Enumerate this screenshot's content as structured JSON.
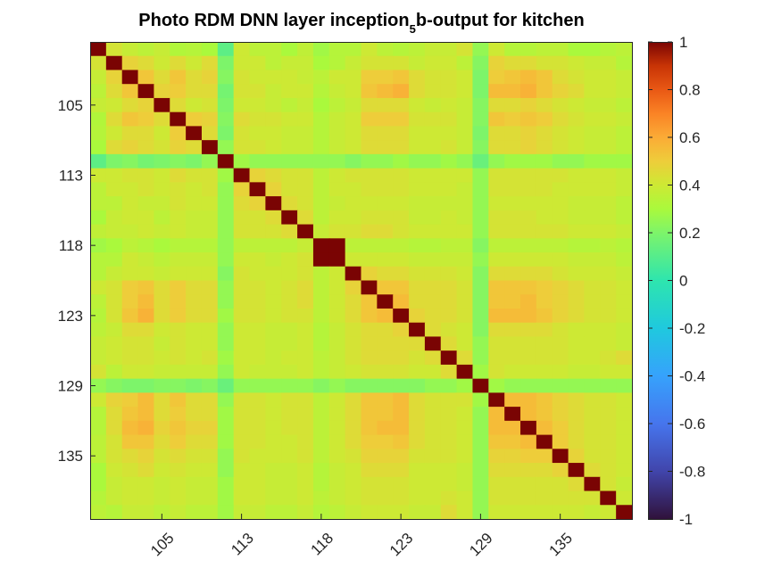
{
  "chart_data": {
    "type": "heatmap",
    "title": {
      "prefix": "Photo RDM DNN layer inception",
      "subscript": "5",
      "suffix": "b-output for kitchen"
    },
    "y_ticks": [
      {
        "label": "105",
        "index": 4
      },
      {
        "label": "113",
        "index": 9
      },
      {
        "label": "118",
        "index": 14
      },
      {
        "label": "123",
        "index": 19
      },
      {
        "label": "129",
        "index": 24
      },
      {
        "label": "135",
        "index": 29
      }
    ],
    "x_ticks": [
      {
        "label": "105",
        "index": 4
      },
      {
        "label": "113",
        "index": 9
      },
      {
        "label": "118",
        "index": 14
      },
      {
        "label": "123",
        "index": 19
      },
      {
        "label": "129",
        "index": 24
      },
      {
        "label": "135",
        "index": 29
      }
    ],
    "colorbar": {
      "min": -1,
      "max": 1,
      "ticks": [
        "-1",
        "-0.8",
        "-0.6",
        "-0.4",
        "-0.2",
        "0",
        "0.2",
        "0.4",
        "0.6",
        "0.8",
        "1"
      ],
      "colormap": "turbo"
    },
    "matrix": [
      [
        1.0,
        0.42,
        0.38,
        0.35,
        0.38,
        0.32,
        0.33,
        0.3,
        0.12,
        0.4,
        0.35,
        0.35,
        0.3,
        0.36,
        0.28,
        0.33,
        0.33,
        0.4,
        0.35,
        0.33,
        0.35,
        0.38,
        0.38,
        0.42,
        0.25,
        0.4,
        0.33,
        0.33,
        0.35,
        0.35,
        0.3,
        0.3,
        0.33,
        0.35
      ],
      [
        0.42,
        1.0,
        0.48,
        0.45,
        0.4,
        0.45,
        0.4,
        0.45,
        0.2,
        0.4,
        0.4,
        0.35,
        0.38,
        0.38,
        0.3,
        0.33,
        0.38,
        0.42,
        0.42,
        0.42,
        0.38,
        0.4,
        0.4,
        0.35,
        0.22,
        0.48,
        0.45,
        0.45,
        0.42,
        0.42,
        0.4,
        0.38,
        0.38,
        0.33
      ],
      [
        0.38,
        0.48,
        1.0,
        0.52,
        0.45,
        0.52,
        0.45,
        0.48,
        0.22,
        0.42,
        0.4,
        0.4,
        0.4,
        0.38,
        0.35,
        0.4,
        0.4,
        0.5,
        0.5,
        0.52,
        0.45,
        0.42,
        0.42,
        0.4,
        0.2,
        0.5,
        0.52,
        0.55,
        0.52,
        0.45,
        0.42,
        0.4,
        0.4,
        0.38
      ],
      [
        0.35,
        0.45,
        0.52,
        1.0,
        0.48,
        0.5,
        0.45,
        0.45,
        0.18,
        0.42,
        0.42,
        0.38,
        0.4,
        0.4,
        0.33,
        0.38,
        0.4,
        0.52,
        0.55,
        0.58,
        0.45,
        0.42,
        0.42,
        0.4,
        0.2,
        0.55,
        0.55,
        0.58,
        0.52,
        0.48,
        0.45,
        0.4,
        0.4,
        0.38
      ],
      [
        0.38,
        0.4,
        0.45,
        0.48,
        1.0,
        0.45,
        0.4,
        0.42,
        0.2,
        0.4,
        0.4,
        0.38,
        0.35,
        0.38,
        0.3,
        0.35,
        0.38,
        0.45,
        0.45,
        0.45,
        0.4,
        0.38,
        0.4,
        0.38,
        0.22,
        0.45,
        0.45,
        0.48,
        0.45,
        0.42,
        0.4,
        0.38,
        0.38,
        0.35
      ],
      [
        0.32,
        0.45,
        0.52,
        0.5,
        0.45,
        1.0,
        0.5,
        0.48,
        0.22,
        0.45,
        0.42,
        0.42,
        0.4,
        0.4,
        0.33,
        0.38,
        0.4,
        0.5,
        0.5,
        0.5,
        0.42,
        0.42,
        0.42,
        0.38,
        0.22,
        0.52,
        0.5,
        0.52,
        0.5,
        0.45,
        0.42,
        0.4,
        0.4,
        0.38
      ],
      [
        0.33,
        0.4,
        0.45,
        0.45,
        0.4,
        0.5,
        1.0,
        0.45,
        0.2,
        0.42,
        0.4,
        0.4,
        0.38,
        0.38,
        0.33,
        0.38,
        0.4,
        0.45,
        0.45,
        0.45,
        0.4,
        0.4,
        0.4,
        0.38,
        0.2,
        0.45,
        0.45,
        0.48,
        0.45,
        0.42,
        0.4,
        0.38,
        0.38,
        0.35
      ],
      [
        0.3,
        0.45,
        0.48,
        0.45,
        0.42,
        0.48,
        0.45,
        1.0,
        0.25,
        0.42,
        0.42,
        0.4,
        0.38,
        0.38,
        0.33,
        0.38,
        0.4,
        0.45,
        0.45,
        0.45,
        0.4,
        0.4,
        0.42,
        0.38,
        0.22,
        0.45,
        0.45,
        0.48,
        0.45,
        0.42,
        0.4,
        0.38,
        0.38,
        0.35
      ],
      [
        0.12,
        0.2,
        0.22,
        0.18,
        0.2,
        0.22,
        0.2,
        0.25,
        1.0,
        0.28,
        0.25,
        0.25,
        0.25,
        0.25,
        0.25,
        0.25,
        0.22,
        0.25,
        0.25,
        0.28,
        0.25,
        0.25,
        0.28,
        0.25,
        0.15,
        0.25,
        0.28,
        0.28,
        0.28,
        0.25,
        0.25,
        0.28,
        0.28,
        0.28
      ],
      [
        0.4,
        0.4,
        0.42,
        0.42,
        0.4,
        0.45,
        0.42,
        0.42,
        0.28,
        1.0,
        0.48,
        0.45,
        0.42,
        0.42,
        0.35,
        0.4,
        0.42,
        0.42,
        0.42,
        0.42,
        0.4,
        0.4,
        0.4,
        0.4,
        0.25,
        0.42,
        0.42,
        0.42,
        0.42,
        0.42,
        0.4,
        0.4,
        0.4,
        0.38
      ],
      [
        0.35,
        0.4,
        0.4,
        0.42,
        0.4,
        0.42,
        0.4,
        0.42,
        0.25,
        0.48,
        1.0,
        0.48,
        0.42,
        0.42,
        0.35,
        0.4,
        0.4,
        0.42,
        0.42,
        0.42,
        0.4,
        0.4,
        0.4,
        0.38,
        0.25,
        0.42,
        0.42,
        0.42,
        0.42,
        0.4,
        0.4,
        0.4,
        0.4,
        0.38
      ],
      [
        0.35,
        0.35,
        0.4,
        0.38,
        0.38,
        0.42,
        0.4,
        0.4,
        0.25,
        0.45,
        0.48,
        1.0,
        0.45,
        0.42,
        0.35,
        0.38,
        0.4,
        0.4,
        0.4,
        0.4,
        0.38,
        0.38,
        0.38,
        0.38,
        0.25,
        0.4,
        0.4,
        0.4,
        0.4,
        0.4,
        0.38,
        0.38,
        0.38,
        0.35
      ],
      [
        0.3,
        0.38,
        0.4,
        0.4,
        0.35,
        0.4,
        0.38,
        0.38,
        0.25,
        0.42,
        0.42,
        0.45,
        1.0,
        0.45,
        0.35,
        0.4,
        0.4,
        0.42,
        0.42,
        0.42,
        0.38,
        0.38,
        0.4,
        0.38,
        0.25,
        0.42,
        0.42,
        0.42,
        0.4,
        0.4,
        0.38,
        0.38,
        0.38,
        0.35
      ],
      [
        0.36,
        0.38,
        0.38,
        0.4,
        0.38,
        0.4,
        0.38,
        0.38,
        0.25,
        0.42,
        0.42,
        0.42,
        0.45,
        1.0,
        0.38,
        0.42,
        0.42,
        0.45,
        0.45,
        0.42,
        0.4,
        0.4,
        0.4,
        0.4,
        0.25,
        0.42,
        0.42,
        0.42,
        0.42,
        0.42,
        0.4,
        0.4,
        0.4,
        0.38
      ],
      [
        0.28,
        0.3,
        0.35,
        0.33,
        0.3,
        0.33,
        0.33,
        0.33,
        0.25,
        0.35,
        0.35,
        0.35,
        0.35,
        0.38,
        1.0,
        1.0,
        0.35,
        0.35,
        0.35,
        0.35,
        0.33,
        0.33,
        0.35,
        0.35,
        0.22,
        0.35,
        0.35,
        0.35,
        0.35,
        0.35,
        0.33,
        0.33,
        0.35,
        0.33
      ],
      [
        0.33,
        0.33,
        0.4,
        0.38,
        0.35,
        0.38,
        0.38,
        0.38,
        0.25,
        0.4,
        0.4,
        0.38,
        0.4,
        0.42,
        1.0,
        1.0,
        0.4,
        0.4,
        0.4,
        0.4,
        0.38,
        0.38,
        0.38,
        0.38,
        0.25,
        0.4,
        0.4,
        0.4,
        0.4,
        0.4,
        0.38,
        0.38,
        0.38,
        0.35
      ],
      [
        0.33,
        0.38,
        0.4,
        0.4,
        0.38,
        0.4,
        0.4,
        0.4,
        0.22,
        0.42,
        0.4,
        0.4,
        0.4,
        0.42,
        0.35,
        0.4,
        1.0,
        0.48,
        0.45,
        0.45,
        0.42,
        0.42,
        0.42,
        0.4,
        0.22,
        0.45,
        0.45,
        0.45,
        0.45,
        0.42,
        0.4,
        0.4,
        0.4,
        0.38
      ],
      [
        0.4,
        0.42,
        0.5,
        0.52,
        0.45,
        0.5,
        0.45,
        0.45,
        0.25,
        0.42,
        0.42,
        0.4,
        0.42,
        0.45,
        0.35,
        0.4,
        0.48,
        1.0,
        0.52,
        0.52,
        0.45,
        0.45,
        0.45,
        0.42,
        0.22,
        0.52,
        0.52,
        0.52,
        0.5,
        0.48,
        0.45,
        0.42,
        0.42,
        0.4
      ],
      [
        0.35,
        0.42,
        0.5,
        0.55,
        0.45,
        0.5,
        0.45,
        0.45,
        0.25,
        0.42,
        0.42,
        0.4,
        0.42,
        0.45,
        0.35,
        0.4,
        0.45,
        0.52,
        1.0,
        0.55,
        0.45,
        0.45,
        0.45,
        0.42,
        0.22,
        0.52,
        0.52,
        0.55,
        0.5,
        0.48,
        0.45,
        0.42,
        0.42,
        0.4
      ],
      [
        0.33,
        0.42,
        0.52,
        0.58,
        0.45,
        0.5,
        0.45,
        0.45,
        0.28,
        0.42,
        0.42,
        0.4,
        0.42,
        0.42,
        0.35,
        0.4,
        0.45,
        0.52,
        0.55,
        1.0,
        0.48,
        0.45,
        0.45,
        0.42,
        0.22,
        0.55,
        0.55,
        0.55,
        0.52,
        0.48,
        0.45,
        0.42,
        0.42,
        0.4
      ],
      [
        0.35,
        0.38,
        0.45,
        0.45,
        0.4,
        0.42,
        0.4,
        0.4,
        0.25,
        0.4,
        0.4,
        0.38,
        0.38,
        0.4,
        0.33,
        0.38,
        0.42,
        0.45,
        0.45,
        0.48,
        1.0,
        0.45,
        0.42,
        0.4,
        0.22,
        0.45,
        0.45,
        0.45,
        0.45,
        0.42,
        0.4,
        0.4,
        0.4,
        0.38
      ],
      [
        0.38,
        0.4,
        0.42,
        0.42,
        0.38,
        0.42,
        0.4,
        0.4,
        0.25,
        0.4,
        0.4,
        0.38,
        0.38,
        0.4,
        0.33,
        0.38,
        0.42,
        0.45,
        0.45,
        0.45,
        0.45,
        1.0,
        0.45,
        0.4,
        0.25,
        0.42,
        0.42,
        0.42,
        0.42,
        0.42,
        0.4,
        0.4,
        0.4,
        0.38
      ],
      [
        0.38,
        0.4,
        0.42,
        0.42,
        0.4,
        0.42,
        0.4,
        0.42,
        0.28,
        0.4,
        0.4,
        0.38,
        0.4,
        0.4,
        0.35,
        0.38,
        0.42,
        0.45,
        0.45,
        0.45,
        0.42,
        0.45,
        1.0,
        0.45,
        0.25,
        0.42,
        0.42,
        0.42,
        0.42,
        0.42,
        0.4,
        0.4,
        0.42,
        0.45
      ],
      [
        0.42,
        0.35,
        0.4,
        0.4,
        0.38,
        0.38,
        0.38,
        0.38,
        0.25,
        0.4,
        0.38,
        0.38,
        0.38,
        0.4,
        0.35,
        0.38,
        0.4,
        0.42,
        0.42,
        0.42,
        0.4,
        0.4,
        0.45,
        1.0,
        0.28,
        0.42,
        0.4,
        0.4,
        0.4,
        0.4,
        0.38,
        0.38,
        0.4,
        0.4
      ],
      [
        0.25,
        0.22,
        0.2,
        0.2,
        0.22,
        0.22,
        0.2,
        0.22,
        0.15,
        0.25,
        0.25,
        0.25,
        0.25,
        0.25,
        0.22,
        0.25,
        0.22,
        0.22,
        0.22,
        0.22,
        0.22,
        0.25,
        0.25,
        0.28,
        1.0,
        0.28,
        0.25,
        0.25,
        0.25,
        0.25,
        0.25,
        0.25,
        0.25,
        0.25
      ],
      [
        0.4,
        0.48,
        0.5,
        0.55,
        0.45,
        0.52,
        0.45,
        0.45,
        0.25,
        0.42,
        0.42,
        0.4,
        0.42,
        0.42,
        0.35,
        0.4,
        0.45,
        0.52,
        0.52,
        0.55,
        0.45,
        0.42,
        0.42,
        0.42,
        0.28,
        1.0,
        0.55,
        0.55,
        0.52,
        0.48,
        0.45,
        0.42,
        0.42,
        0.4
      ],
      [
        0.33,
        0.45,
        0.52,
        0.55,
        0.45,
        0.5,
        0.45,
        0.45,
        0.28,
        0.42,
        0.42,
        0.4,
        0.42,
        0.42,
        0.35,
        0.4,
        0.45,
        0.52,
        0.52,
        0.55,
        0.45,
        0.42,
        0.42,
        0.4,
        0.25,
        0.55,
        1.0,
        0.55,
        0.52,
        0.48,
        0.45,
        0.42,
        0.42,
        0.4
      ],
      [
        0.33,
        0.45,
        0.55,
        0.58,
        0.48,
        0.52,
        0.48,
        0.48,
        0.28,
        0.42,
        0.42,
        0.4,
        0.42,
        0.42,
        0.35,
        0.4,
        0.45,
        0.52,
        0.55,
        0.55,
        0.45,
        0.42,
        0.42,
        0.4,
        0.25,
        0.55,
        0.55,
        1.0,
        0.55,
        0.5,
        0.45,
        0.42,
        0.42,
        0.4
      ],
      [
        0.35,
        0.42,
        0.52,
        0.52,
        0.45,
        0.5,
        0.45,
        0.45,
        0.28,
        0.42,
        0.42,
        0.4,
        0.4,
        0.42,
        0.35,
        0.4,
        0.45,
        0.5,
        0.5,
        0.52,
        0.45,
        0.42,
        0.42,
        0.4,
        0.25,
        0.52,
        0.52,
        0.55,
        1.0,
        0.5,
        0.45,
        0.42,
        0.42,
        0.4
      ],
      [
        0.35,
        0.42,
        0.45,
        0.48,
        0.42,
        0.45,
        0.42,
        0.42,
        0.25,
        0.42,
        0.4,
        0.4,
        0.4,
        0.42,
        0.35,
        0.4,
        0.42,
        0.48,
        0.48,
        0.48,
        0.42,
        0.42,
        0.42,
        0.4,
        0.25,
        0.48,
        0.48,
        0.5,
        0.5,
        1.0,
        0.48,
        0.42,
        0.42,
        0.4
      ],
      [
        0.3,
        0.4,
        0.42,
        0.45,
        0.4,
        0.42,
        0.4,
        0.4,
        0.25,
        0.4,
        0.4,
        0.38,
        0.38,
        0.4,
        0.33,
        0.38,
        0.4,
        0.45,
        0.45,
        0.45,
        0.4,
        0.4,
        0.4,
        0.38,
        0.25,
        0.45,
        0.45,
        0.45,
        0.45,
        0.48,
        1.0,
        0.45,
        0.42,
        0.4
      ],
      [
        0.3,
        0.38,
        0.4,
        0.4,
        0.38,
        0.4,
        0.38,
        0.38,
        0.28,
        0.4,
        0.4,
        0.38,
        0.38,
        0.4,
        0.33,
        0.38,
        0.4,
        0.42,
        0.42,
        0.42,
        0.4,
        0.4,
        0.4,
        0.38,
        0.25,
        0.42,
        0.42,
        0.42,
        0.42,
        0.42,
        0.45,
        1.0,
        0.42,
        0.38
      ],
      [
        0.33,
        0.38,
        0.4,
        0.4,
        0.38,
        0.4,
        0.38,
        0.38,
        0.28,
        0.4,
        0.4,
        0.38,
        0.38,
        0.4,
        0.35,
        0.38,
        0.4,
        0.42,
        0.42,
        0.42,
        0.4,
        0.4,
        0.42,
        0.4,
        0.25,
        0.42,
        0.42,
        0.42,
        0.42,
        0.42,
        0.42,
        0.42,
        1.0,
        0.4
      ],
      [
        0.35,
        0.33,
        0.38,
        0.38,
        0.35,
        0.38,
        0.35,
        0.35,
        0.28,
        0.38,
        0.38,
        0.35,
        0.35,
        0.38,
        0.33,
        0.35,
        0.38,
        0.4,
        0.4,
        0.4,
        0.38,
        0.38,
        0.45,
        0.4,
        0.25,
        0.4,
        0.4,
        0.4,
        0.4,
        0.4,
        0.4,
        0.38,
        0.4,
        1.0
      ]
    ]
  }
}
